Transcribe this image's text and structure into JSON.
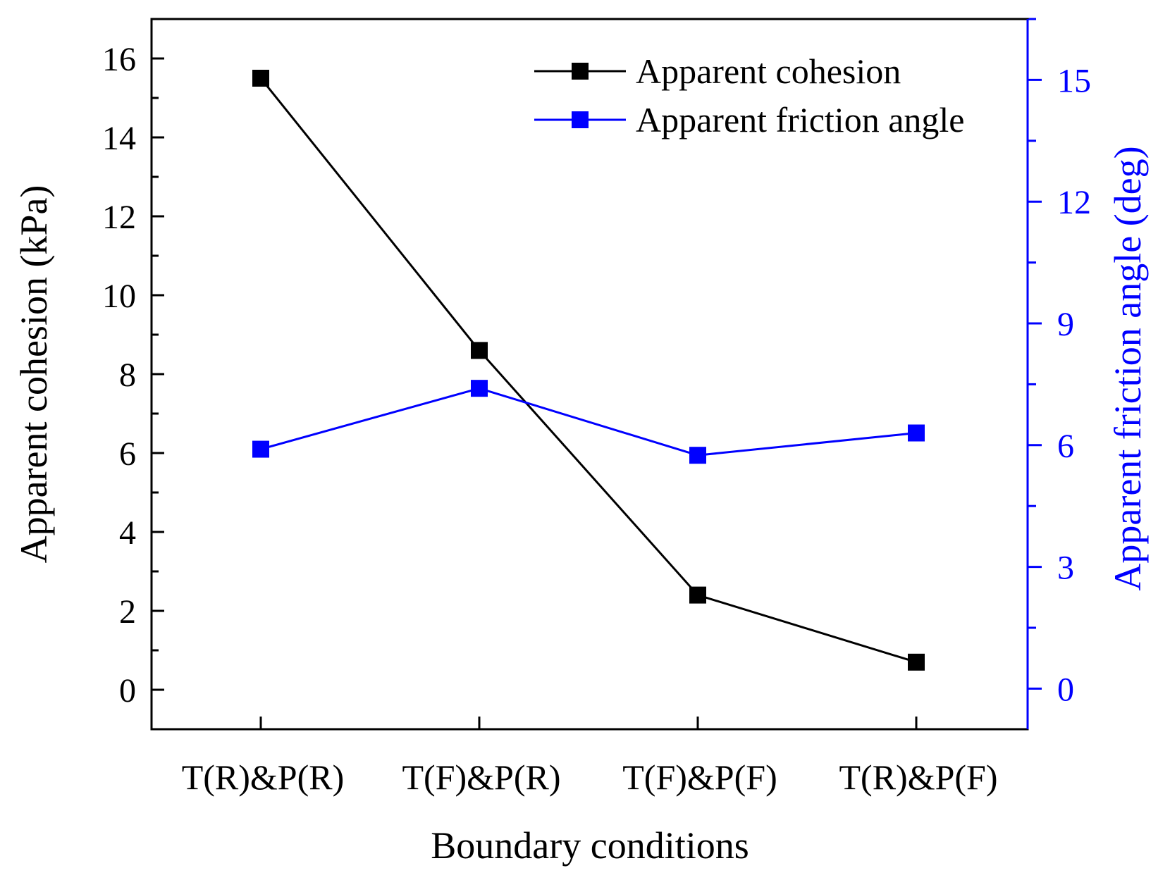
{
  "chart_data": {
    "type": "line",
    "xlabel": "Boundary conditions",
    "categories": [
      "T(R)&P(R)",
      "T(F)&P(R)",
      "T(F)&P(F)",
      "T(R)&P(F)"
    ],
    "left_axis": {
      "label": "Apparent cohesion (kPa)",
      "range": [
        -1,
        17
      ],
      "ticks": [
        0,
        2,
        4,
        6,
        8,
        10,
        12,
        14,
        16
      ],
      "minor_step": 1,
      "color": "#000000"
    },
    "right_axis": {
      "label": "Apparent friction angle (deg)",
      "range": [
        -1,
        16.5
      ],
      "ticks": [
        0,
        3,
        6,
        9,
        12,
        15
      ],
      "minor_step": 1.5,
      "color": "#0000ff"
    },
    "series": [
      {
        "name": "Apparent cohesion",
        "axis": "left",
        "color": "#000000",
        "values": [
          15.5,
          8.6,
          2.4,
          0.7
        ]
      },
      {
        "name": "Apparent friction angle",
        "axis": "right",
        "color": "#0000ff",
        "values": [
          5.9,
          7.4,
          5.75,
          6.3
        ]
      }
    ],
    "legend": {
      "position": "top-right"
    }
  }
}
